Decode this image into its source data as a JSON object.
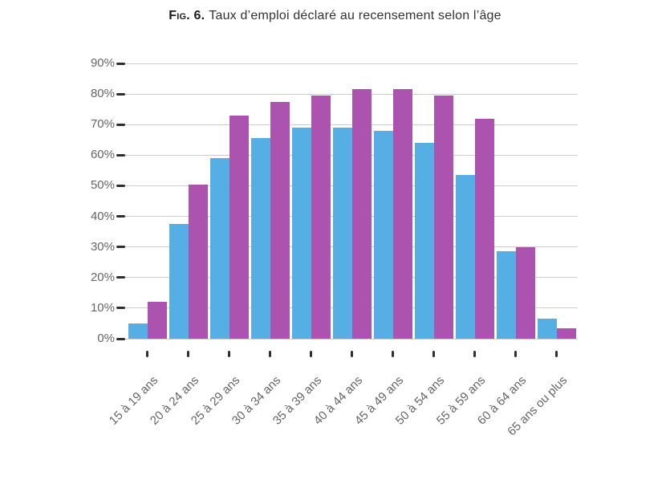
{
  "figure": {
    "label": "Fig. 6.",
    "title": "Taux d’emploi déclaré au recensement selon l’âge"
  },
  "colors": {
    "grid": "#cdcdcd",
    "axis_tick": "#2e2e2e",
    "tick_label_text": "#666666",
    "title_text": "#333333",
    "background": "#ffffff"
  },
  "chart_data": {
    "type": "bar",
    "title": "Fig. 6. Taux d’emploi déclaré au recensement selon l’âge",
    "categories": [
      "15 à 19 ans",
      "20 à 24 ans",
      "25 à 29 ans",
      "30 à 34 ans",
      "35 à 39 ans",
      "40 à 44 ans",
      "45 à 49 ans",
      "50 à 54 ans",
      "55 à 59 ans",
      "60 à 64 ans",
      "65 ans ou plus"
    ],
    "series": [
      {
        "name": "serie-bleue",
        "color": "#55AFE4",
        "values": [
          5,
          37.5,
          59,
          65.5,
          69,
          69,
          68,
          64,
          53.5,
          28.5,
          6.5
        ]
      },
      {
        "name": "serie-violette",
        "color": "#AC53AF",
        "values": [
          12,
          50.5,
          73,
          77.5,
          79.5,
          81.5,
          81.5,
          79.5,
          72,
          30,
          3.5
        ]
      }
    ],
    "xlabel": "",
    "ylabel": "",
    "ylim": [
      0,
      90
    ],
    "ytick_step": 10,
    "ytick_labels": [
      "0%",
      "10%",
      "20%",
      "30%",
      "40%",
      "50%",
      "60%",
      "70%",
      "80%",
      "90%"
    ],
    "grid": true,
    "legend": "none"
  }
}
